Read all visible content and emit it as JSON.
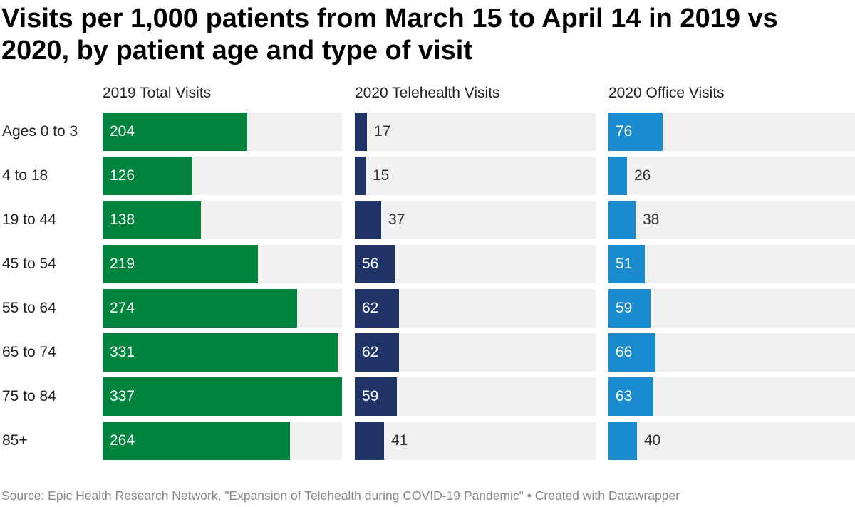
{
  "title": "Visits per 1,000 patients from March 15 to April 14 in 2019 vs 2020, by patient age and type of visit",
  "source": "Source: Epic Health Research Network, \"Expansion of Telehealth during COVID-19 Pandemic\" • Created with Datawrapper",
  "chart_data": {
    "type": "bar",
    "orientation": "horizontal",
    "categories": [
      "Ages 0 to 3",
      "4 to 18",
      "19 to 44",
      "45 to 54",
      "55 to 64",
      "65 to 74",
      "75 to 84",
      "85+"
    ],
    "series": [
      {
        "name": "2019 Total Visits",
        "color": "#00843d",
        "values": [
          204,
          126,
          138,
          219,
          274,
          331,
          337,
          264
        ]
      },
      {
        "name": "2020 Telehealth Visits",
        "color": "#1f3366",
        "values": [
          17,
          15,
          37,
          56,
          62,
          62,
          59,
          41
        ]
      },
      {
        "name": "2020 Office Visits",
        "color": "#1a8bcf",
        "values": [
          76,
          26,
          38,
          51,
          59,
          66,
          63,
          40
        ]
      }
    ],
    "xlim": [
      0,
      337
    ],
    "grid": false,
    "background_track": "#f1f1f1"
  }
}
